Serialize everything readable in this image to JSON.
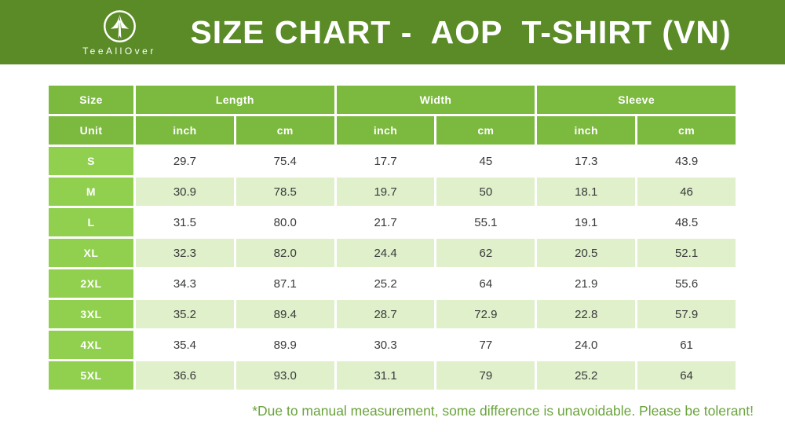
{
  "banner": {
    "logo_text": "TeeAllOver",
    "title": "SIZE CHART -  AOP  T-SHIRT (VN)"
  },
  "icons": {
    "logo": "tree-arrow-in-circle"
  },
  "colors": {
    "banner_green": "#5a8b26",
    "header_cell_green": "#7cb93f",
    "size_cell_green": "#90d04e",
    "row_alt_green": "#dff0cb",
    "note_text_green": "#6aa33c",
    "data_text": "#3a3a3a"
  },
  "table": {
    "group_headers": [
      "Size",
      "Length",
      "Width",
      "Sleeve"
    ],
    "unit_row": [
      "Unit",
      "inch",
      "cm",
      "inch",
      "cm",
      "inch",
      "cm"
    ],
    "rows": [
      {
        "size": "S",
        "values": [
          "29.7",
          "75.4",
          "17.7",
          "45",
          "17.3",
          "43.9"
        ]
      },
      {
        "size": "M",
        "values": [
          "30.9",
          "78.5",
          "19.7",
          "50",
          "18.1",
          "46"
        ]
      },
      {
        "size": "L",
        "values": [
          "31.5",
          "80.0",
          "21.7",
          "55.1",
          "19.1",
          "48.5"
        ]
      },
      {
        "size": "XL",
        "values": [
          "32.3",
          "82.0",
          "24.4",
          "62",
          "20.5",
          "52.1"
        ]
      },
      {
        "size": "2XL",
        "values": [
          "34.3",
          "87.1",
          "25.2",
          "64",
          "21.9",
          "55.6"
        ]
      },
      {
        "size": "3XL",
        "values": [
          "35.2",
          "89.4",
          "28.7",
          "72.9",
          "22.8",
          "57.9"
        ]
      },
      {
        "size": "4XL",
        "values": [
          "35.4",
          "89.9",
          "30.3",
          "77",
          "24.0",
          "61"
        ]
      },
      {
        "size": "5XL",
        "values": [
          "36.6",
          "93.0",
          "31.1",
          "79",
          "25.2",
          "64"
        ]
      }
    ]
  },
  "footer": {
    "note": "*Due to manual measurement, some difference is unavoidable. Please be tolerant!"
  }
}
